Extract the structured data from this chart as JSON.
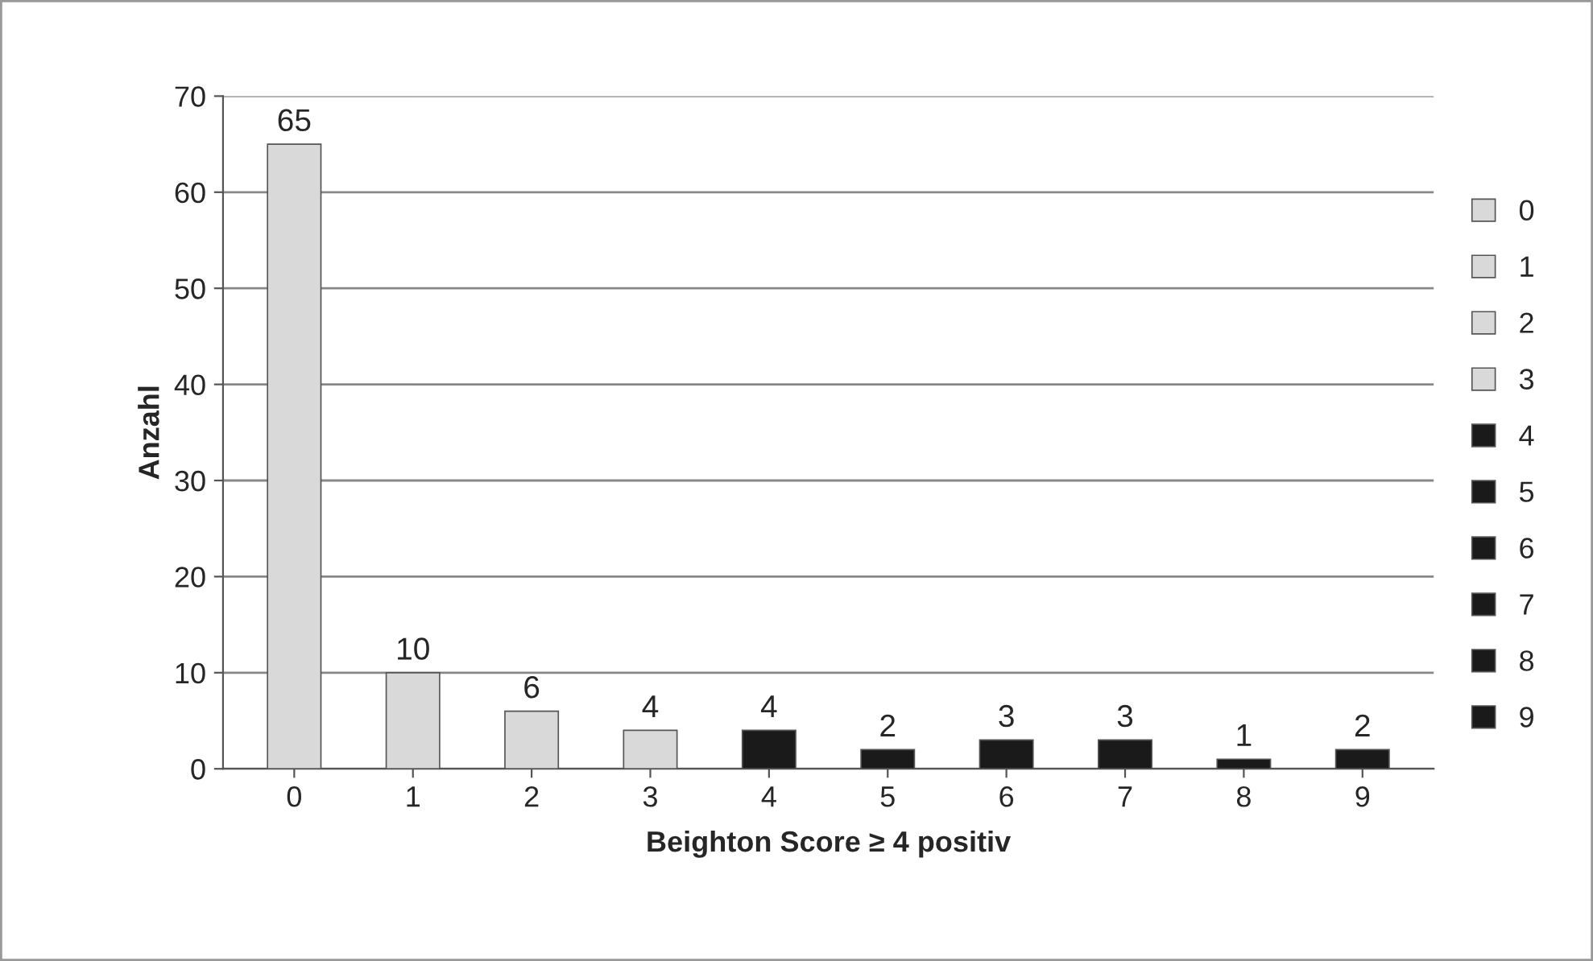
{
  "chart_data": {
    "type": "bar",
    "xlabel": "Beighton Score ≥ 4 positiv",
    "ylabel": "Anzahl",
    "categories": [
      "0",
      "1",
      "2",
      "3",
      "4",
      "5",
      "6",
      "7",
      "8",
      "9"
    ],
    "series": [
      {
        "name": "0",
        "color": "#d9d9d9",
        "values": [
          65,
          null,
          null,
          null,
          null,
          null,
          null,
          null,
          null,
          null
        ]
      },
      {
        "name": "1",
        "color": "#d9d9d9",
        "values": [
          null,
          10,
          null,
          null,
          null,
          null,
          null,
          null,
          null,
          null
        ]
      },
      {
        "name": "2",
        "color": "#d9d9d9",
        "values": [
          null,
          null,
          6,
          null,
          null,
          null,
          null,
          null,
          null,
          null
        ]
      },
      {
        "name": "3",
        "color": "#d9d9d9",
        "values": [
          null,
          null,
          null,
          4,
          null,
          null,
          null,
          null,
          null,
          null
        ]
      },
      {
        "name": "4",
        "color": "#1a1a1a",
        "values": [
          null,
          null,
          null,
          null,
          4,
          null,
          null,
          null,
          null,
          null
        ]
      },
      {
        "name": "5",
        "color": "#1a1a1a",
        "values": [
          null,
          null,
          null,
          null,
          null,
          2,
          null,
          null,
          null,
          null
        ]
      },
      {
        "name": "6",
        "color": "#1a1a1a",
        "values": [
          null,
          null,
          null,
          null,
          null,
          null,
          3,
          null,
          null,
          null
        ]
      },
      {
        "name": "7",
        "color": "#1a1a1a",
        "values": [
          null,
          null,
          null,
          null,
          null,
          null,
          null,
          3,
          null,
          null
        ]
      },
      {
        "name": "8",
        "color": "#1a1a1a",
        "values": [
          null,
          null,
          null,
          null,
          null,
          null,
          null,
          null,
          1,
          null
        ]
      },
      {
        "name": "9",
        "color": "#1a1a1a",
        "values": [
          null,
          null,
          null,
          null,
          null,
          null,
          null,
          null,
          null,
          2
        ]
      }
    ],
    "ylim": [
      0,
      70
    ],
    "yticks": [
      0,
      10,
      20,
      30,
      40,
      50,
      60,
      70
    ],
    "grid": "y",
    "legend": "right",
    "data_labels": true
  }
}
